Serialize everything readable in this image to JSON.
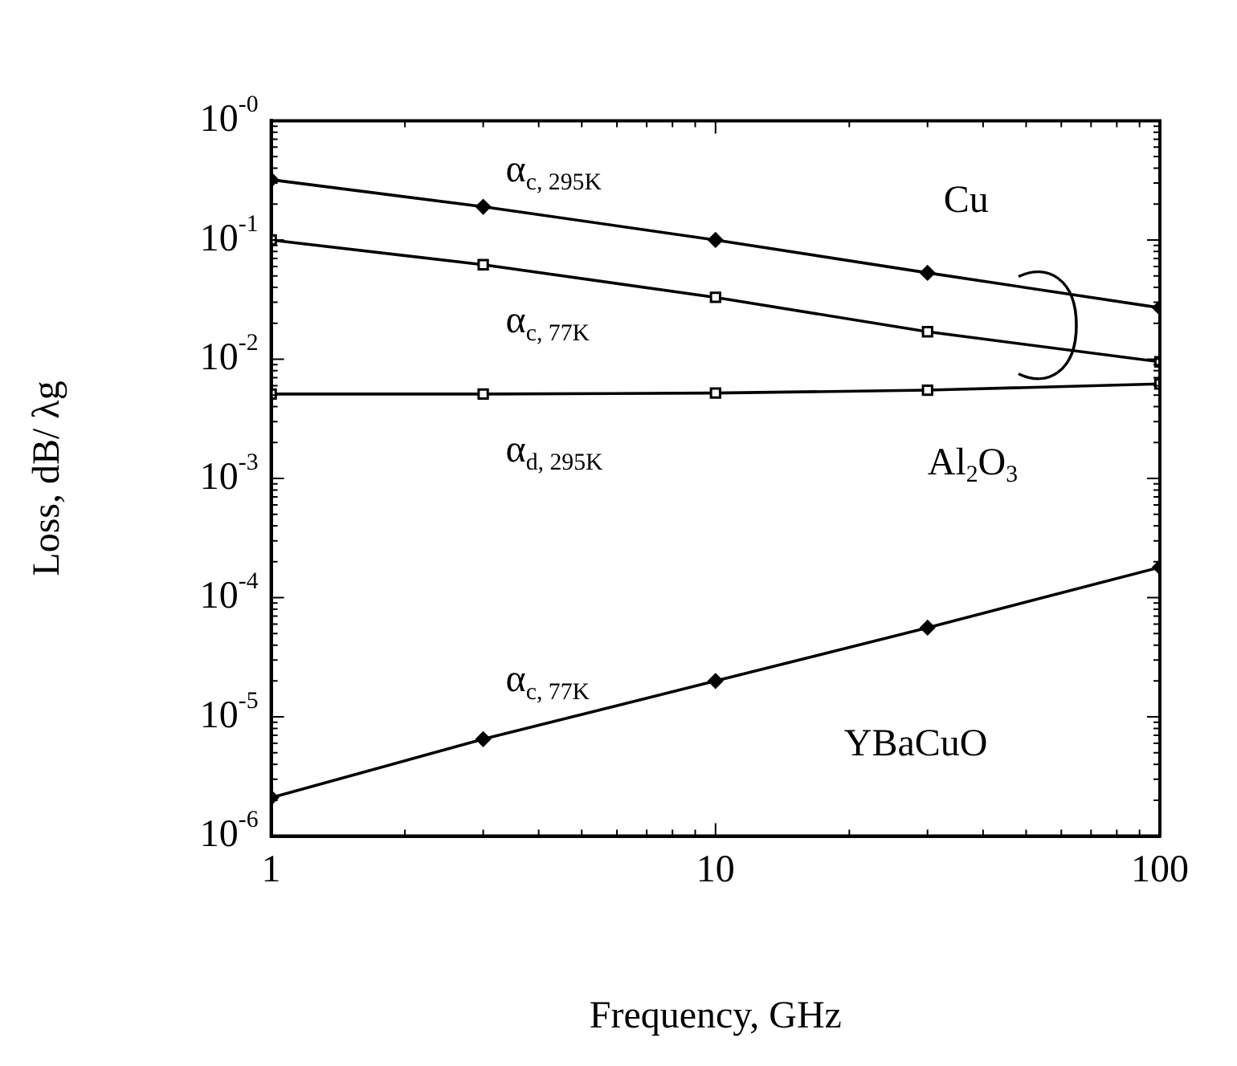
{
  "chart_data": {
    "type": "line",
    "xlabel": "Frequency, GHz",
    "ylabel": "Loss, dB/ λg",
    "x": [
      1,
      3,
      10,
      30,
      100
    ],
    "series": [
      {
        "color": "#000000",
        "marker": "diamond",
        "values": [
          0.32,
          0.19,
          0.1,
          0.053,
          0.027
        ]
      },
      {
        "color": "#000000",
        "marker": "square",
        "values": [
          0.1,
          0.062,
          0.033,
          0.017,
          0.0095
        ]
      },
      {
        "color": "#000000",
        "marker": "square",
        "values": [
          0.0051,
          0.0051,
          0.0052,
          0.0055,
          0.0062
        ]
      },
      {
        "color": "#000000",
        "marker": "diamond",
        "values": [
          2.1e-06,
          6.5e-06,
          2e-05,
          5.6e-05,
          0.00018
        ]
      }
    ],
    "log": "xy",
    "xlim": [
      1,
      100
    ],
    "xticks": [
      1,
      10,
      100
    ],
    "ylim": [
      1e-06,
      1
    ],
    "yticks": [
      {
        "value": 1,
        "label": "10$^{-0}$"
      },
      {
        "value": 0.1,
        "label": "10$^{-1}$"
      },
      {
        "value": 0.01,
        "label": "10$^{-2}$"
      },
      {
        "value": 0.001,
        "label": "10$^{-3}$"
      },
      {
        "value": 0.0001,
        "label": "10$^{-4}$"
      },
      {
        "value": 1e-05,
        "label": "10$^{-5}$"
      },
      {
        "value": 1e-06,
        "label": "10$^{-6}$"
      }
    ],
    "grid": false,
    "legend": false,
    "line_style": "solid",
    "annotations": [
      "α$_{c, 295K}$",
      "α$_{c, 77K}$",
      "α$_{d, 295K}$",
      "Cu",
      "Al$_{2}$O$_{3}$",
      "α$_{c, 77K}$",
      "YBaCuO"
    ]
  }
}
